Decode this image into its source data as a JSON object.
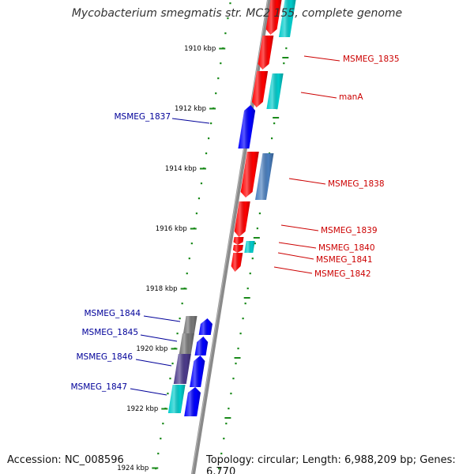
{
  "title": "Mycobacterium smegmatis str. MC2 155, complete genome",
  "accession": "Accession: NC_008596",
  "stats": "Topology: circular; Length: 6,988,209 bp; Genes: 6,770",
  "colors": {
    "backbone": "#8a8a8a",
    "scale_dots": "#1a8a1a",
    "forward_cds": "#ff0000",
    "reverse_cds": "#0000ff",
    "forward_rna": "#00cccc",
    "reverse_rna": "#4a7fbf",
    "other": "#777777",
    "other_dark": "#4b3a8a",
    "label_forward": "#cc0000",
    "label_reverse": "#000099"
  },
  "scale_labels": [
    "1910 kbp",
    "1912 kbp",
    "1914 kbp",
    "1916 kbp",
    "1918 kbp",
    "1920 kbp",
    "1922 kbp",
    "1924 kbp"
  ],
  "forward_labels": [
    "MSMEG_1835",
    "manA",
    "MSMEG_1838",
    "MSMEG_1839",
    "MSMEG_1840",
    "MSMEG_1841",
    "MSMEG_1842"
  ],
  "reverse_labels": [
    "MSMEG_1837",
    "MSMEG_1844",
    "MSMEG_1845",
    "MSMEG_1846",
    "MSMEG_1847"
  ]
}
